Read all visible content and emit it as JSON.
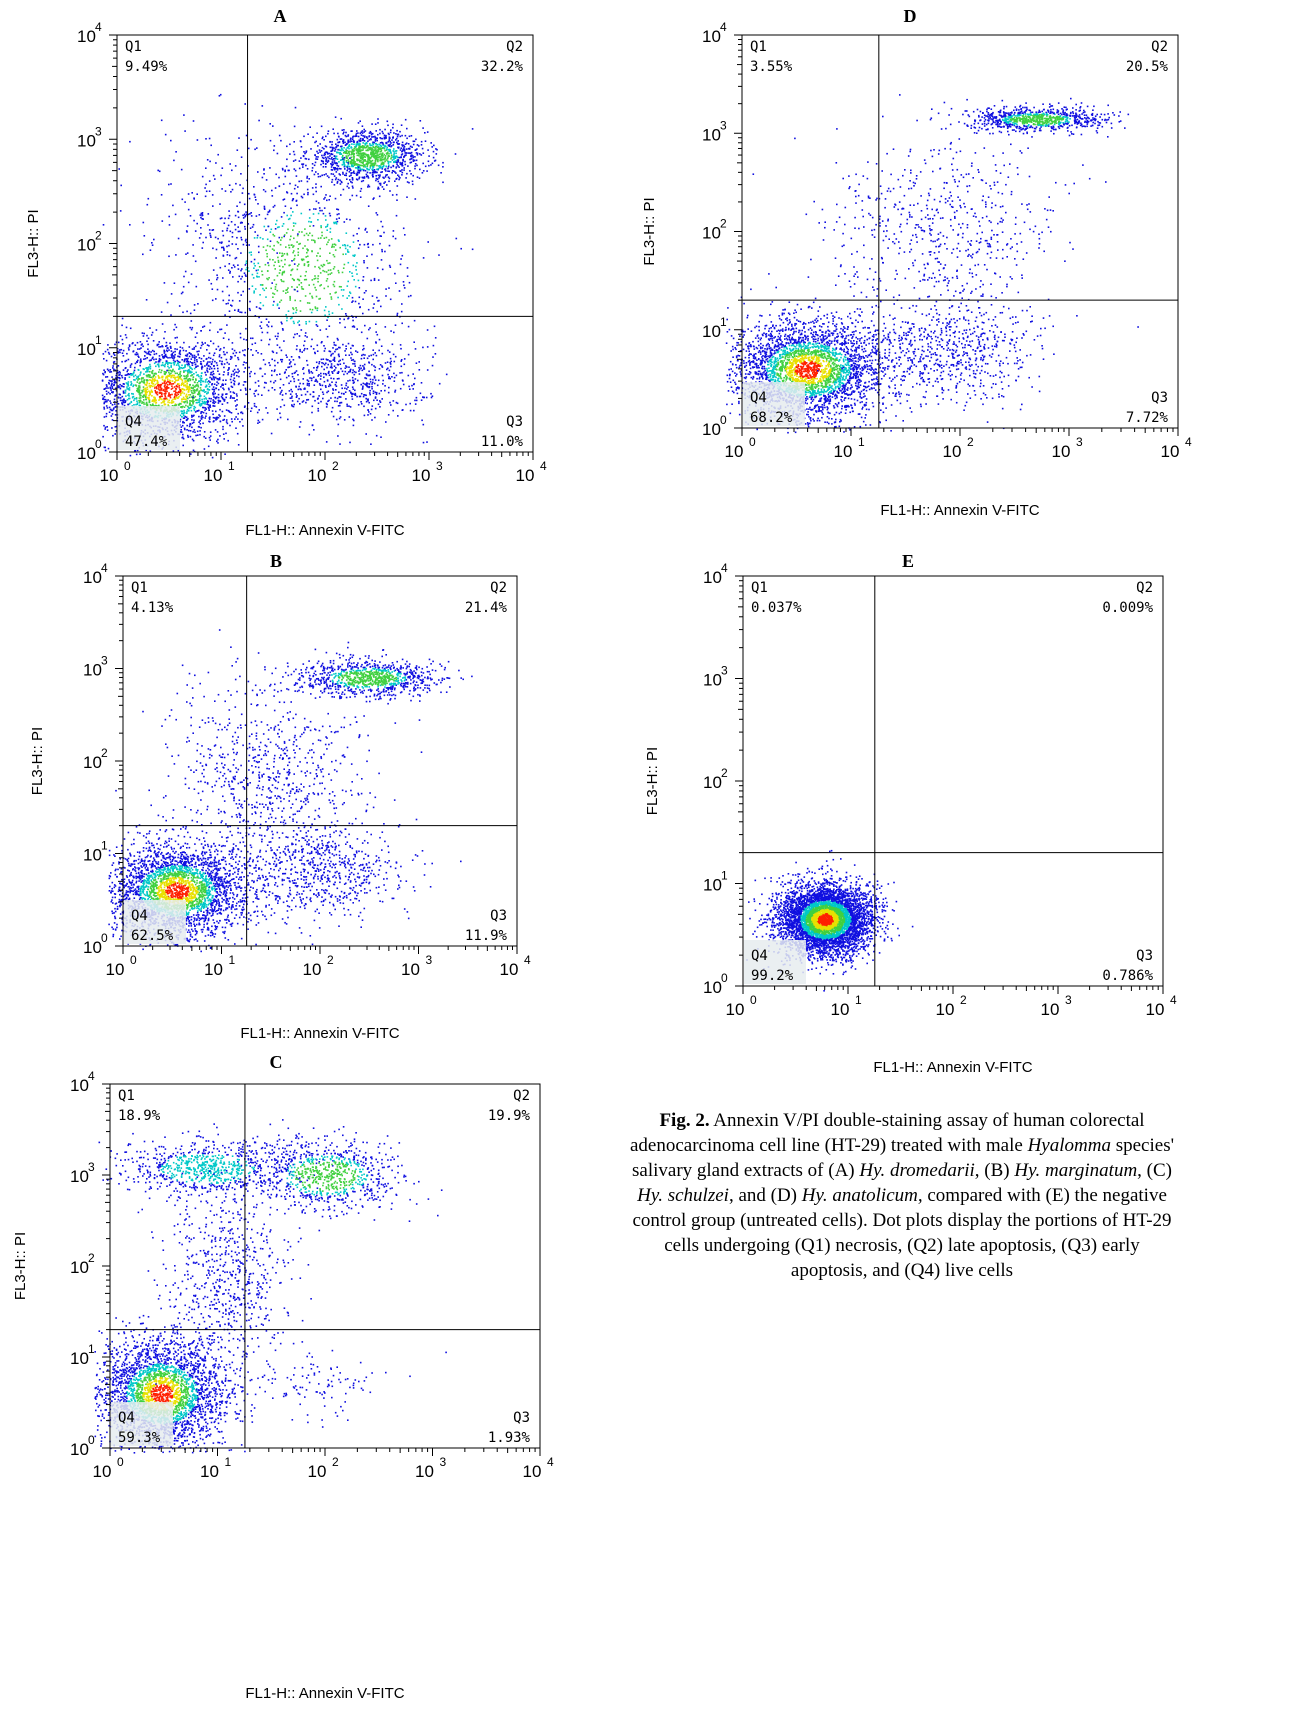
{
  "chart_data": [
    {
      "type": "scatter",
      "panel_label": "A",
      "xlabel": "FL1-H:: Annexin V-FITC",
      "ylabel": "FL3-H:: PI",
      "xscale": "log",
      "yscale": "log",
      "xlim": [
        1,
        10000
      ],
      "ylim": [
        1,
        10000
      ],
      "tick_labels": [
        "10",
        "10",
        "10",
        "10",
        "10"
      ],
      "tick_exponents": [
        "0",
        "1",
        "2",
        "3",
        "4"
      ],
      "gate": {
        "x": 18,
        "y": 20
      },
      "quadrants": [
        {
          "name": "Q1",
          "percent": "9.49%"
        },
        {
          "name": "Q2",
          "percent": "32.2%"
        },
        {
          "name": "Q3",
          "percent": "11.0%"
        },
        {
          "name": "Q4",
          "percent": "47.4%"
        }
      ],
      "density": {
        "clusters": [
          {
            "x": 3,
            "y": 4,
            "weight": 0.42,
            "sx": 0.38,
            "sy": 0.25
          },
          {
            "x": 250,
            "y": 700,
            "weight": 0.24,
            "sx": 0.28,
            "sy": 0.12
          },
          {
            "x": 60,
            "y": 60,
            "weight": 0.18,
            "sx": 0.5,
            "sy": 0.5
          },
          {
            "x": 150,
            "y": 5,
            "weight": 0.12,
            "sx": 0.4,
            "sy": 0.22
          },
          {
            "x": 10,
            "y": 200,
            "weight": 0.04,
            "sx": 0.4,
            "sy": 0.5
          }
        ]
      }
    },
    {
      "type": "scatter",
      "panel_label": "B",
      "xlabel": "FL1-H:: Annexin V-FITC",
      "ylabel": "FL3-H:: PI",
      "xscale": "log",
      "yscale": "log",
      "xlim": [
        1,
        10000
      ],
      "ylim": [
        1,
        10000
      ],
      "tick_labels": [
        "10",
        "10",
        "10",
        "10",
        "10"
      ],
      "tick_exponents": [
        "0",
        "1",
        "2",
        "3",
        "4"
      ],
      "gate": {
        "x": 18,
        "y": 20
      },
      "quadrants": [
        {
          "name": "Q1",
          "percent": "4.13%"
        },
        {
          "name": "Q2",
          "percent": "21.4%"
        },
        {
          "name": "Q3",
          "percent": "11.9%"
        },
        {
          "name": "Q4",
          "percent": "62.5%"
        }
      ],
      "density": {
        "clusters": [
          {
            "x": 3.5,
            "y": 4,
            "weight": 0.55,
            "sx": 0.35,
            "sy": 0.25
          },
          {
            "x": 300,
            "y": 800,
            "weight": 0.18,
            "sx": 0.35,
            "sy": 0.1
          },
          {
            "x": 40,
            "y": 60,
            "weight": 0.12,
            "sx": 0.45,
            "sy": 0.5
          },
          {
            "x": 100,
            "y": 6,
            "weight": 0.12,
            "sx": 0.45,
            "sy": 0.25
          },
          {
            "x": 10,
            "y": 100,
            "weight": 0.03,
            "sx": 0.4,
            "sy": 0.5
          }
        ]
      }
    },
    {
      "type": "scatter",
      "panel_label": "C",
      "xlabel": "FL1-H:: Annexin V-FITC",
      "ylabel": "FL3-H:: PI",
      "xscale": "log",
      "yscale": "log",
      "xlim": [
        1,
        10000
      ],
      "ylim": [
        1,
        10000
      ],
      "tick_labels": [
        "10",
        "10",
        "10",
        "10",
        "10"
      ],
      "tick_exponents": [
        "0",
        "1",
        "2",
        "3",
        "4"
      ],
      "gate": {
        "x": 18,
        "y": 20
      },
      "quadrants": [
        {
          "name": "Q1",
          "percent": "18.9%"
        },
        {
          "name": "Q2",
          "percent": "19.9%"
        },
        {
          "name": "Q3",
          "percent": "1.93%"
        },
        {
          "name": "Q4",
          "percent": "59.3%"
        }
      ],
      "density": {
        "clusters": [
          {
            "x": 3,
            "y": 4,
            "weight": 0.55,
            "sx": 0.3,
            "sy": 0.3
          },
          {
            "x": 8,
            "y": 1200,
            "weight": 0.15,
            "sx": 0.4,
            "sy": 0.15
          },
          {
            "x": 100,
            "y": 1000,
            "weight": 0.16,
            "sx": 0.35,
            "sy": 0.2
          },
          {
            "x": 12,
            "y": 80,
            "weight": 0.12,
            "sx": 0.3,
            "sy": 0.5
          },
          {
            "x": 80,
            "y": 5,
            "weight": 0.02,
            "sx": 0.35,
            "sy": 0.2
          }
        ]
      }
    },
    {
      "type": "scatter",
      "panel_label": "D",
      "xlabel": "FL1-H:: Annexin V-FITC",
      "ylabel": "FL3-H:: PI",
      "xscale": "log",
      "yscale": "log",
      "xlim": [
        1,
        10000
      ],
      "ylim": [
        1,
        10000
      ],
      "tick_labels": [
        "10",
        "10",
        "10",
        "10",
        "10"
      ],
      "tick_exponents": [
        "0",
        "1",
        "2",
        "3",
        "4"
      ],
      "gate": {
        "x": 18,
        "y": 20
      },
      "quadrants": [
        {
          "name": "Q1",
          "percent": "3.55%"
        },
        {
          "name": "Q2",
          "percent": "20.5%"
        },
        {
          "name": "Q3",
          "percent": "7.72%"
        },
        {
          "name": "Q4",
          "percent": "68.2%"
        }
      ],
      "density": {
        "clusters": [
          {
            "x": 4,
            "y": 4,
            "weight": 0.6,
            "sx": 0.35,
            "sy": 0.25
          },
          {
            "x": 500,
            "y": 1400,
            "weight": 0.16,
            "sx": 0.3,
            "sy": 0.06
          },
          {
            "x": 60,
            "y": 100,
            "weight": 0.12,
            "sx": 0.5,
            "sy": 0.5
          },
          {
            "x": 80,
            "y": 6,
            "weight": 0.12,
            "sx": 0.4,
            "sy": 0.25
          }
        ]
      }
    },
    {
      "type": "scatter",
      "panel_label": "E",
      "xlabel": "FL1-H:: Annexin V-FITC",
      "ylabel": "FL3-H:: PI",
      "xscale": "log",
      "yscale": "log",
      "xlim": [
        1,
        10000
      ],
      "ylim": [
        1,
        10000
      ],
      "tick_labels": [
        "10",
        "10",
        "10",
        "10",
        "10"
      ],
      "tick_exponents": [
        "0",
        "1",
        "2",
        "3",
        "4"
      ],
      "gate": {
        "x": 18,
        "y": 20
      },
      "quadrants": [
        {
          "name": "Q1",
          "percent": "0.037%"
        },
        {
          "name": "Q2",
          "percent": "0.009%"
        },
        {
          "name": "Q3",
          "percent": "0.786%"
        },
        {
          "name": "Q4",
          "percent": "99.2%"
        }
      ],
      "density": {
        "clusters": [
          {
            "x": 6,
            "y": 4.5,
            "weight": 1.0,
            "sx": 0.22,
            "sy": 0.17
          }
        ]
      }
    }
  ],
  "caption": {
    "label": "Fig. 2.",
    "part1": " Annexin V/PI double-staining assay of human colorectal adenocarcinoma cell line (HT-29) treated with male ",
    "genus": "Hyalomma",
    "part2": " species' salivary gland extracts of (A) ",
    "sp_a": "Hy. dromedarii",
    "part3": ", (B) ",
    "sp_b": "Hy. marginatum",
    "part4": ", (C) ",
    "sp_c": "Hy. schulzei",
    "part5": ", and (D) ",
    "sp_d": "Hy. anatolicum,",
    "part6": " compared with (E) the negative control group (untreated cells). Dot plots display the portions of HT-29 cells undergoing (Q1) necrosis, (Q2) late apoptosis, (Q3) early apoptosis, and (Q4) live cells"
  },
  "colors": {
    "dot_low": "#1010e0",
    "dot_mid": "#00c8c8",
    "dot_hi1": "#40d040",
    "dot_hi2": "#e8e000",
    "dot_peak": "#ff2000"
  }
}
